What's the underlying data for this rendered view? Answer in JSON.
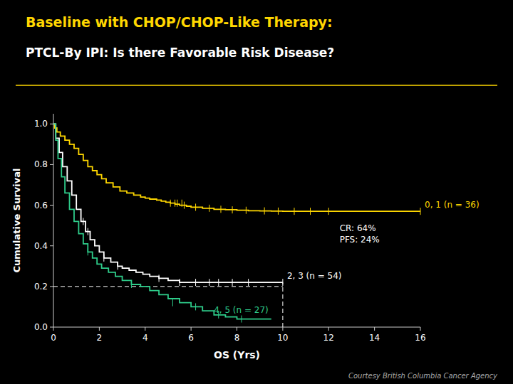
{
  "chart_data": {
    "type": "step",
    "title": "Baseline with CHOP/CHOP-Like Therapy:",
    "subtitle": "PTCL-By IPI: Is there Favorable Risk Disease?",
    "x_label": "OS (Yrs)",
    "y_label": "Cumulative Survival",
    "xlim": [
      0,
      16
    ],
    "ylim": [
      0,
      1.05
    ],
    "xticks": [
      0,
      2,
      4,
      6,
      8,
      10,
      12,
      14,
      16
    ],
    "yticks": [
      {
        "value": 0,
        "label": "0.0"
      },
      0.2,
      0.4,
      0.6,
      0.8,
      {
        "value": 1.0,
        "label": "1.0"
      }
    ],
    "grid": false,
    "series": [
      {
        "name": "0, 1 (n = 36)",
        "color": "#FFD700",
        "x": [
          0,
          0.05,
          0.15,
          0.3,
          0.5,
          0.7,
          0.9,
          1.1,
          1.3,
          1.5,
          1.7,
          1.9,
          2.1,
          2.3,
          2.6,
          2.9,
          3.2,
          3.5,
          3.8,
          4.0,
          4.2,
          4.5,
          4.7,
          4.9,
          5.1,
          5.3,
          5.5,
          5.8,
          6.0,
          6.5,
          7.0,
          7.5,
          8.0,
          8.5,
          9.0,
          9.5,
          10.0,
          10.5,
          11.0,
          11.5,
          12.0,
          12.5,
          13.0,
          13.5,
          14.0,
          14.5,
          15.0,
          15.5,
          16.0
        ],
        "values": [
          1.0,
          0.98,
          0.96,
          0.94,
          0.92,
          0.9,
          0.88,
          0.85,
          0.82,
          0.79,
          0.77,
          0.75,
          0.73,
          0.71,
          0.69,
          0.67,
          0.66,
          0.65,
          0.64,
          0.635,
          0.63,
          0.625,
          0.62,
          0.615,
          0.61,
          0.605,
          0.6,
          0.595,
          0.59,
          0.585,
          0.58,
          0.578,
          0.575,
          0.573,
          0.572,
          0.571,
          0.57,
          0.57,
          0.57,
          0.57,
          0.57,
          0.57,
          0.57,
          0.57,
          0.57,
          0.57,
          0.57,
          0.57,
          0.57
        ],
        "censor_x": [
          5.1,
          5.3,
          5.4,
          5.6,
          5.7,
          6.2,
          6.8,
          7.3,
          7.8,
          8.4,
          9.2,
          9.8,
          10.5,
          11.2,
          12.0,
          16.0
        ],
        "censor_y": [
          0.61,
          0.61,
          0.61,
          0.61,
          0.6,
          0.59,
          0.585,
          0.58,
          0.577,
          0.575,
          0.572,
          0.571,
          0.57,
          0.57,
          0.57,
          0.57
        ]
      },
      {
        "name": "2, 3 (n = 54)",
        "color": "#FFFFFF",
        "x": [
          0,
          0.1,
          0.25,
          0.4,
          0.6,
          0.8,
          1.0,
          1.2,
          1.4,
          1.6,
          1.8,
          2.0,
          2.2,
          2.5,
          2.8,
          3.0,
          3.3,
          3.6,
          3.9,
          4.2,
          4.6,
          5.0,
          5.5,
          6.0,
          6.5,
          7.0,
          7.5,
          8.0,
          8.5,
          9.0,
          9.5,
          10.0
        ],
        "values": [
          1.0,
          0.93,
          0.86,
          0.79,
          0.72,
          0.65,
          0.58,
          0.52,
          0.47,
          0.43,
          0.4,
          0.37,
          0.34,
          0.32,
          0.3,
          0.29,
          0.28,
          0.27,
          0.26,
          0.25,
          0.24,
          0.23,
          0.22,
          0.22,
          0.22,
          0.22,
          0.22,
          0.22,
          0.22,
          0.22,
          0.22,
          0.22
        ],
        "censor_x": [
          1.3,
          1.5,
          2.2,
          2.8,
          4.6,
          5.5,
          6.2,
          6.8,
          7.2,
          7.8,
          8.5,
          10.0
        ],
        "censor_y": [
          0.52,
          0.47,
          0.34,
          0.3,
          0.24,
          0.22,
          0.22,
          0.22,
          0.22,
          0.22,
          0.22,
          0.22
        ]
      },
      {
        "name": "4, 5 (n = 27)",
        "color": "#2ECC8A",
        "x": [
          0,
          0.1,
          0.2,
          0.35,
          0.5,
          0.7,
          0.9,
          1.1,
          1.3,
          1.5,
          1.7,
          1.9,
          2.1,
          2.4,
          2.7,
          3.0,
          3.4,
          3.8,
          4.2,
          4.6,
          5.0,
          5.5,
          6.0,
          6.5,
          7.0,
          7.5,
          8.0,
          8.5,
          9.0,
          9.5
        ],
        "values": [
          1.0,
          0.92,
          0.83,
          0.74,
          0.66,
          0.58,
          0.52,
          0.46,
          0.41,
          0.37,
          0.34,
          0.31,
          0.29,
          0.27,
          0.25,
          0.23,
          0.21,
          0.2,
          0.18,
          0.16,
          0.14,
          0.12,
          0.1,
          0.08,
          0.06,
          0.05,
          0.04,
          0.04,
          0.04,
          0.04
        ],
        "censor_x": [
          1.5,
          3.4,
          5.2,
          6.2,
          7.2,
          8.2
        ],
        "censor_y": [
          0.37,
          0.21,
          0.12,
          0.1,
          0.06,
          0.04
        ]
      }
    ],
    "reference_lines": [
      {
        "x": [
          0,
          10
        ],
        "y": [
          0.2,
          0.2
        ],
        "color": "#FFFFFF",
        "line_style": "dashed"
      },
      {
        "x": [
          10,
          10
        ],
        "y": [
          0,
          0.22
        ],
        "color": "#FFFFFF",
        "line_style": "dashed"
      }
    ],
    "annotations": [
      "CR: 64%\nPFS: 24%"
    ],
    "footnote": "Courtesy British Columbia Cancer Agency"
  }
}
